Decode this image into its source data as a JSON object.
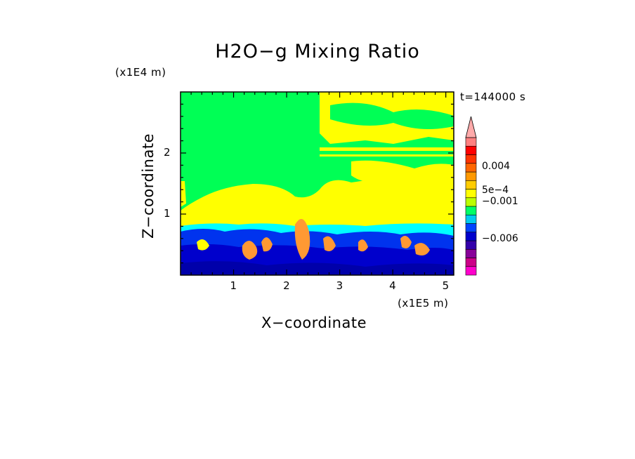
{
  "chart_data": {
    "type": "heatmap",
    "title": "H2O−g Mixing Ratio",
    "time_label": "t=144000 s",
    "xlabel": "X−coordinate",
    "ylabel": "Z−coordinate",
    "x_unit": "(x1E5 m)",
    "y_unit": "(x1E4 m)",
    "xlim": [
      0,
      5.15
    ],
    "ylim": [
      0,
      3.0
    ],
    "x_ticks": [
      1,
      2,
      3,
      4,
      5
    ],
    "y_ticks": [
      1,
      2
    ],
    "x_tick_labels": [
      "1",
      "2",
      "3",
      "4",
      "5"
    ],
    "y_tick_labels": [
      "1",
      "2"
    ],
    "colorbar": {
      "colors": [
        "#ff00cc",
        "#cc0088",
        "#880099",
        "#3300aa",
        "#0000cc",
        "#0044ff",
        "#00ccee",
        "#00ff66",
        "#bbff00",
        "#ffff00",
        "#ffcc00",
        "#ff9900",
        "#ff6600",
        "#ff3300",
        "#ff0000",
        "#ff8080",
        "#ffaaaa"
      ],
      "labels": [
        "0.004",
        "5e−4",
        "−0.001",
        "−0.006"
      ]
    },
    "regions": [
      {
        "level": "background",
        "color": "#00ff44"
      },
      {
        "level": "positive",
        "color": "#ffff00"
      },
      {
        "level": "near-zero",
        "color": "#00ffff"
      },
      {
        "level": "negative",
        "color": "#0000dd"
      },
      {
        "level": "strong-positive",
        "color": "#ff8800"
      }
    ]
  }
}
